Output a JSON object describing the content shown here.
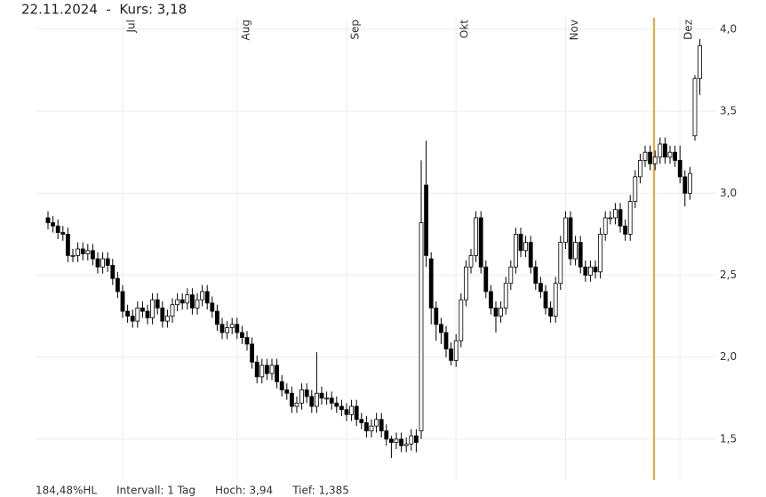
{
  "chart_data": {
    "type": "candlestick",
    "title": "22.11.2024  -  Kurs: 3,18",
    "footer": [
      "184,48%HL",
      "Intervall: 1 Tag",
      "Hoch: 3,94",
      "Tief: 1,385"
    ],
    "categories": [
      null,
      null,
      null,
      null,
      null,
      null,
      null,
      null,
      null,
      null,
      null,
      null,
      null,
      null,
      null,
      "Jul",
      null,
      null,
      null,
      null,
      null,
      null,
      null,
      null,
      null,
      null,
      null,
      null,
      null,
      null,
      null,
      null,
      null,
      null,
      null,
      null,
      null,
      null,
      "Aug",
      null,
      null,
      null,
      null,
      null,
      null,
      null,
      null,
      null,
      null,
      null,
      null,
      null,
      null,
      null,
      null,
      null,
      null,
      null,
      null,
      null,
      "Sep",
      null,
      null,
      null,
      null,
      null,
      null,
      null,
      null,
      null,
      null,
      null,
      null,
      null,
      null,
      null,
      null,
      null,
      null,
      null,
      null,
      null,
      "Okt",
      null,
      null,
      null,
      null,
      null,
      null,
      null,
      null,
      null,
      null,
      null,
      null,
      null,
      null,
      null,
      null,
      null,
      null,
      null,
      null,
      null,
      "Nov",
      null,
      null,
      null,
      null,
      null,
      null,
      null,
      null,
      null,
      null,
      null,
      null,
      null,
      null,
      null,
      null,
      null,
      null,
      null,
      null,
      null,
      null,
      "Dez",
      null,
      null,
      null,
      null
    ],
    "open": [
      2.85,
      2.82,
      2.8,
      2.76,
      2.75,
      2.62,
      2.62,
      2.66,
      2.63,
      2.65,
      2.6,
      2.55,
      2.6,
      2.56,
      2.48,
      2.4,
      2.28,
      2.25,
      2.22,
      2.3,
      2.28,
      2.24,
      2.35,
      2.3,
      2.22,
      2.25,
      2.32,
      2.35,
      2.33,
      2.38,
      2.3,
      2.35,
      2.4,
      2.33,
      2.28,
      2.2,
      2.15,
      2.18,
      2.2,
      2.15,
      2.12,
      2.08,
      1.97,
      1.88,
      1.95,
      1.9,
      1.95,
      1.85,
      1.8,
      1.78,
      1.7,
      1.72,
      1.8,
      1.76,
      1.7,
      1.78,
      1.75,
      1.75,
      1.72,
      1.7,
      1.68,
      1.65,
      1.7,
      1.62,
      1.6,
      1.55,
      1.58,
      1.62,
      1.55,
      1.5,
      1.48,
      1.5,
      1.46,
      1.47,
      1.52,
      1.55,
      3.05,
      2.6,
      2.3,
      2.2,
      2.15,
      2.05,
      1.98,
      2.1,
      2.35,
      2.55,
      2.62,
      2.85,
      2.55,
      2.4,
      2.3,
      2.25,
      2.3,
      2.45,
      2.55,
      2.75,
      2.65,
      2.7,
      2.55,
      2.45,
      2.4,
      2.3,
      2.25,
      2.45,
      2.7,
      2.85,
      2.6,
      2.7,
      2.55,
      2.5,
      2.55,
      2.52,
      2.75,
      2.85,
      2.85,
      2.9,
      2.8,
      2.75,
      2.95,
      3.1,
      3.2,
      3.25,
      3.18,
      3.22,
      3.3,
      3.22,
      3.25,
      3.2,
      3.1,
      3.0,
      3.35,
      3.7
    ],
    "high": [
      2.89,
      2.86,
      2.84,
      2.8,
      2.79,
      2.66,
      2.7,
      2.7,
      2.69,
      2.69,
      2.64,
      2.64,
      2.64,
      2.6,
      2.52,
      2.44,
      2.32,
      2.29,
      2.34,
      2.34,
      2.32,
      2.39,
      2.39,
      2.34,
      2.29,
      2.36,
      2.39,
      2.39,
      2.42,
      2.42,
      2.39,
      2.44,
      2.44,
      2.37,
      2.32,
      2.24,
      2.22,
      2.24,
      2.24,
      2.19,
      2.16,
      2.12,
      2.01,
      1.99,
      1.99,
      1.99,
      1.99,
      1.89,
      1.84,
      1.82,
      1.76,
      1.84,
      1.84,
      1.8,
      2.03,
      1.82,
      1.79,
      1.79,
      1.76,
      1.74,
      1.72,
      1.74,
      1.74,
      1.66,
      1.64,
      1.62,
      1.66,
      1.66,
      1.59,
      1.52,
      1.54,
      1.54,
      1.51,
      1.56,
      1.56,
      3.2,
      3.32,
      2.64,
      2.34,
      2.24,
      2.19,
      2.09,
      2.14,
      2.39,
      2.59,
      2.66,
      2.89,
      2.89,
      2.59,
      2.44,
      2.34,
      2.34,
      2.49,
      2.59,
      2.79,
      2.79,
      2.74,
      2.74,
      2.59,
      2.49,
      2.44,
      2.34,
      2.49,
      2.74,
      2.89,
      2.89,
      2.74,
      2.74,
      2.59,
      2.59,
      2.59,
      2.79,
      2.89,
      2.89,
      2.94,
      2.94,
      2.84,
      2.99,
      3.14,
      3.24,
      3.29,
      3.29,
      3.26,
      3.34,
      3.34,
      3.29,
      3.29,
      3.29,
      3.14,
      3.16,
      3.72,
      3.94
    ],
    "low": [
      2.78,
      2.76,
      2.72,
      2.71,
      2.58,
      2.58,
      2.58,
      2.59,
      2.59,
      2.56,
      2.51,
      2.51,
      2.52,
      2.44,
      2.36,
      2.24,
      2.21,
      2.18,
      2.18,
      2.24,
      2.2,
      2.2,
      2.26,
      2.18,
      2.18,
      2.21,
      2.28,
      2.29,
      2.29,
      2.26,
      2.26,
      2.31,
      2.29,
      2.24,
      2.16,
      2.11,
      2.11,
      2.14,
      2.11,
      2.08,
      2.04,
      1.93,
      1.84,
      1.84,
      1.86,
      1.86,
      1.81,
      1.76,
      1.74,
      1.66,
      1.66,
      1.68,
      1.72,
      1.66,
      1.66,
      1.71,
      1.71,
      1.68,
      1.66,
      1.64,
      1.61,
      1.61,
      1.58,
      1.56,
      1.51,
      1.51,
      1.54,
      1.51,
      1.46,
      1.385,
      1.44,
      1.42,
      1.42,
      1.43,
      1.42,
      1.5,
      2.55,
      2.2,
      2.1,
      2.08,
      2.0,
      1.95,
      1.94,
      2.06,
      2.31,
      2.51,
      2.58,
      2.51,
      2.36,
      2.26,
      2.15,
      2.21,
      2.26,
      2.41,
      2.51,
      2.61,
      2.61,
      2.51,
      2.41,
      2.36,
      2.26,
      2.21,
      2.21,
      2.41,
      2.66,
      2.56,
      2.56,
      2.51,
      2.46,
      2.46,
      2.48,
      2.48,
      2.71,
      2.81,
      2.81,
      2.76,
      2.71,
      2.71,
      2.91,
      3.06,
      3.16,
      3.14,
      3.14,
      3.18,
      3.18,
      3.18,
      3.16,
      3.06,
      2.92,
      2.96,
      3.32,
      3.6
    ],
    "close": [
      2.82,
      2.8,
      2.76,
      2.75,
      2.62,
      2.62,
      2.66,
      2.63,
      2.65,
      2.6,
      2.55,
      2.6,
      2.56,
      2.48,
      2.4,
      2.28,
      2.25,
      2.22,
      2.3,
      2.28,
      2.24,
      2.35,
      2.3,
      2.22,
      2.25,
      2.32,
      2.35,
      2.33,
      2.38,
      2.3,
      2.35,
      2.4,
      2.33,
      2.28,
      2.2,
      2.15,
      2.18,
      2.2,
      2.15,
      2.12,
      2.08,
      1.97,
      1.88,
      1.95,
      1.9,
      1.95,
      1.85,
      1.8,
      1.78,
      1.7,
      1.72,
      1.8,
      1.76,
      1.7,
      1.78,
      1.75,
      1.75,
      1.72,
      1.7,
      1.68,
      1.65,
      1.7,
      1.62,
      1.6,
      1.55,
      1.58,
      1.62,
      1.55,
      1.5,
      1.48,
      1.5,
      1.46,
      1.47,
      1.52,
      1.48,
      2.82,
      2.62,
      2.3,
      2.2,
      2.15,
      2.05,
      1.98,
      2.1,
      2.35,
      2.55,
      2.62,
      2.85,
      2.55,
      2.4,
      2.3,
      2.25,
      2.3,
      2.45,
      2.55,
      2.75,
      2.65,
      2.7,
      2.55,
      2.45,
      2.4,
      2.3,
      2.25,
      2.45,
      2.7,
      2.85,
      2.6,
      2.7,
      2.55,
      2.5,
      2.55,
      2.52,
      2.75,
      2.85,
      2.85,
      2.9,
      2.8,
      2.75,
      2.95,
      3.1,
      3.2,
      3.25,
      3.18,
      3.22,
      3.3,
      3.22,
      3.25,
      3.2,
      3.1,
      3.0,
      3.12,
      3.7,
      3.9
    ],
    "up_color": "#ffffff",
    "down_color": "#000000",
    "line_color": "#000000",
    "ylim": [
      1.25,
      4.07
    ],
    "yticks": [
      {
        "value": 1.5,
        "label": "1,5"
      },
      {
        "value": 2.0,
        "label": "2,0"
      },
      {
        "value": 2.5,
        "label": "2,5"
      },
      {
        "value": 3.0,
        "label": "3,0"
      },
      {
        "value": 3.5,
        "label": "3,5"
      },
      {
        "value": 4.0,
        "label": "4,0"
      }
    ],
    "grid": true
  }
}
